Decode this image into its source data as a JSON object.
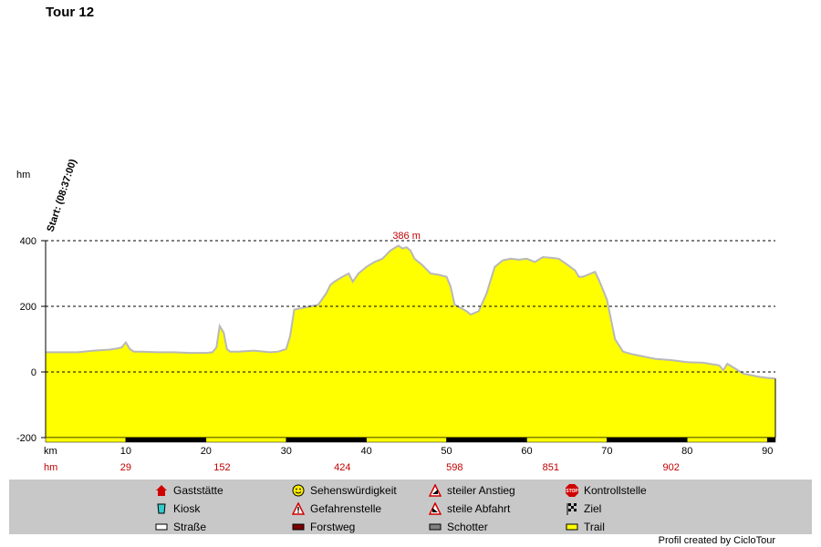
{
  "title": "Tour 12",
  "credit": "Profil created by CicloTour",
  "colors": {
    "fill": "#ffff00",
    "outline": "#b8b8b8",
    "accent_red": "#c00000",
    "legend_bg": "#c8c8c8",
    "bar_dark": "#000000"
  },
  "chart_data": {
    "type": "area",
    "xlabel": "km",
    "ylabel": "hm",
    "xlim": [
      0,
      91
    ],
    "ylim": [
      -200,
      400
    ],
    "xticks": [
      10,
      20,
      30,
      40,
      50,
      60,
      70,
      80,
      90
    ],
    "yticks": [
      400,
      200,
      0,
      -200
    ],
    "hm_row_label": "hm",
    "hm_values": [
      {
        "km": 10,
        "label": "29"
      },
      {
        "km": 22,
        "label": "152"
      },
      {
        "km": 37,
        "label": "424"
      },
      {
        "km": 51,
        "label": "598"
      },
      {
        "km": 63,
        "label": "851"
      },
      {
        "km": 78,
        "label": "902"
      }
    ],
    "start_label": "Start: (08:37:00)",
    "max_label": "386 m",
    "max_km": 45,
    "grid": true,
    "surface_bar": [
      {
        "from": 0,
        "to": 10,
        "type": "trail"
      },
      {
        "from": 10,
        "to": 20,
        "type": "dark"
      },
      {
        "from": 20,
        "to": 30,
        "type": "trail"
      },
      {
        "from": 30,
        "to": 40,
        "type": "dark"
      },
      {
        "from": 40,
        "to": 50,
        "type": "trail"
      },
      {
        "from": 50,
        "to": 60,
        "type": "dark"
      },
      {
        "from": 60,
        "to": 70,
        "type": "trail"
      },
      {
        "from": 70,
        "to": 80,
        "type": "dark"
      },
      {
        "from": 80,
        "to": 90,
        "type": "trail"
      },
      {
        "from": 90,
        "to": 91,
        "type": "dark"
      }
    ],
    "series": [
      {
        "x": [
          0,
          2,
          4,
          6,
          8,
          9,
          9.5,
          10,
          10.5,
          11,
          12,
          14,
          16,
          18,
          20,
          20.8,
          21.3,
          21.7,
          22.2,
          22.6,
          23,
          24,
          26,
          28,
          29,
          30,
          30.5,
          31,
          32,
          33,
          34,
          35,
          35.5,
          36,
          37,
          37.8,
          38.3,
          39,
          40,
          41,
          42,
          43,
          44,
          44.5,
          45,
          45.5,
          46,
          47,
          48,
          49,
          50,
          50.5,
          51,
          52,
          52.5,
          53,
          53.5,
          54,
          55,
          55.5,
          56,
          57,
          58,
          59,
          60,
          61,
          62,
          63,
          64,
          65,
          66,
          66.5,
          67,
          68,
          68.5,
          69,
          70,
          71,
          72,
          73,
          74,
          75,
          76,
          78,
          80,
          82,
          84,
          84.5,
          85,
          86,
          87,
          88,
          89,
          90,
          91
        ],
        "y": [
          60,
          60,
          60,
          65,
          68,
          72,
          75,
          90,
          70,
          62,
          62,
          60,
          60,
          58,
          58,
          60,
          75,
          140,
          120,
          70,
          62,
          62,
          65,
          60,
          62,
          70,
          110,
          190,
          195,
          200,
          205,
          240,
          265,
          275,
          290,
          300,
          275,
          300,
          320,
          335,
          345,
          370,
          385,
          376,
          380,
          370,
          345,
          325,
          300,
          296,
          290,
          260,
          205,
          192,
          185,
          175,
          180,
          185,
          240,
          280,
          320,
          340,
          345,
          342,
          345,
          335,
          350,
          348,
          345,
          328,
          310,
          290,
          290,
          300,
          305,
          280,
          220,
          100,
          62,
          55,
          50,
          45,
          40,
          36,
          30,
          28,
          20,
          5,
          25,
          10,
          -5,
          -10,
          -15,
          -18,
          -20
        ]
      }
    ]
  },
  "legend": {
    "items": [
      {
        "label": "Gaststätte",
        "icon": "house-icon"
      },
      {
        "label": "Sehenswürdigkeit",
        "icon": "smiley-icon"
      },
      {
        "label": "steiler Anstieg",
        "icon": "steep-climb-icon"
      },
      {
        "label": "Kontrollstelle",
        "icon": "stop-sign-icon"
      },
      {
        "label": "Kiosk",
        "icon": "kiosk-icon"
      },
      {
        "label": "Gefahrenstelle",
        "icon": "warning-icon"
      },
      {
        "label": "steile Abfahrt",
        "icon": "steep-descent-icon"
      },
      {
        "label": "Ziel",
        "icon": "finish-flag-icon"
      },
      {
        "label": "Straße",
        "icon": "road-swatch-icon"
      },
      {
        "label": "Forstweg",
        "icon": "forest-road-swatch-icon"
      },
      {
        "label": "Schotter",
        "icon": "gravel-swatch-icon"
      },
      {
        "label": "Trail",
        "icon": "trail-swatch-icon"
      }
    ]
  }
}
